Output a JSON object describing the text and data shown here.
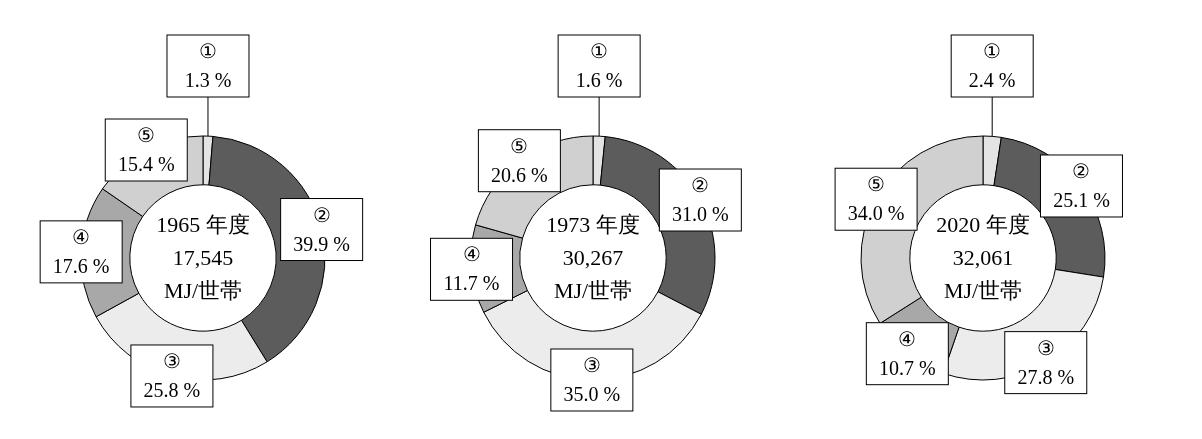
{
  "chart_data": [
    {
      "type": "donut",
      "title": "1965 年度",
      "annotations": [
        "17,545",
        "MJ/世帯"
      ],
      "categories": [
        "①",
        "②",
        "③",
        "④",
        "⑤"
      ],
      "values": [
        1.3,
        39.9,
        25.8,
        17.6,
        15.4
      ],
      "value_labels": [
        "1.3 %",
        "39.9 %",
        "25.8 %",
        "17.6 %",
        "15.4 %"
      ],
      "colors": [
        "#e4e4e4",
        "#5c5c5c",
        "#ececec",
        "#a8a8a8",
        "#d0d0d0"
      ],
      "legend": false
    },
    {
      "type": "donut",
      "title": "1973 年度",
      "annotations": [
        "30,267",
        "MJ/世帯"
      ],
      "categories": [
        "①",
        "②",
        "③",
        "④",
        "⑤"
      ],
      "values": [
        1.6,
        31.0,
        35.0,
        11.7,
        20.6
      ],
      "value_labels": [
        "1.6 %",
        "31.0 %",
        "35.0 %",
        "11.7 %",
        "20.6 %"
      ],
      "colors": [
        "#e4e4e4",
        "#5c5c5c",
        "#ececec",
        "#a8a8a8",
        "#d0d0d0"
      ],
      "legend": false
    },
    {
      "type": "donut",
      "title": "2020 年度",
      "annotations": [
        "32,061",
        "MJ/世帯"
      ],
      "categories": [
        "①",
        "②",
        "③",
        "④",
        "⑤"
      ],
      "values": [
        2.4,
        25.1,
        27.8,
        10.7,
        34.0
      ],
      "value_labels": [
        "2.4 %",
        "25.1 %",
        "27.8 %",
        "10.7 %",
        "34.0 %"
      ],
      "colors": [
        "#e4e4e4",
        "#5c5c5c",
        "#ececec",
        "#a8a8a8",
        "#d0d0d0"
      ],
      "legend": false
    }
  ]
}
